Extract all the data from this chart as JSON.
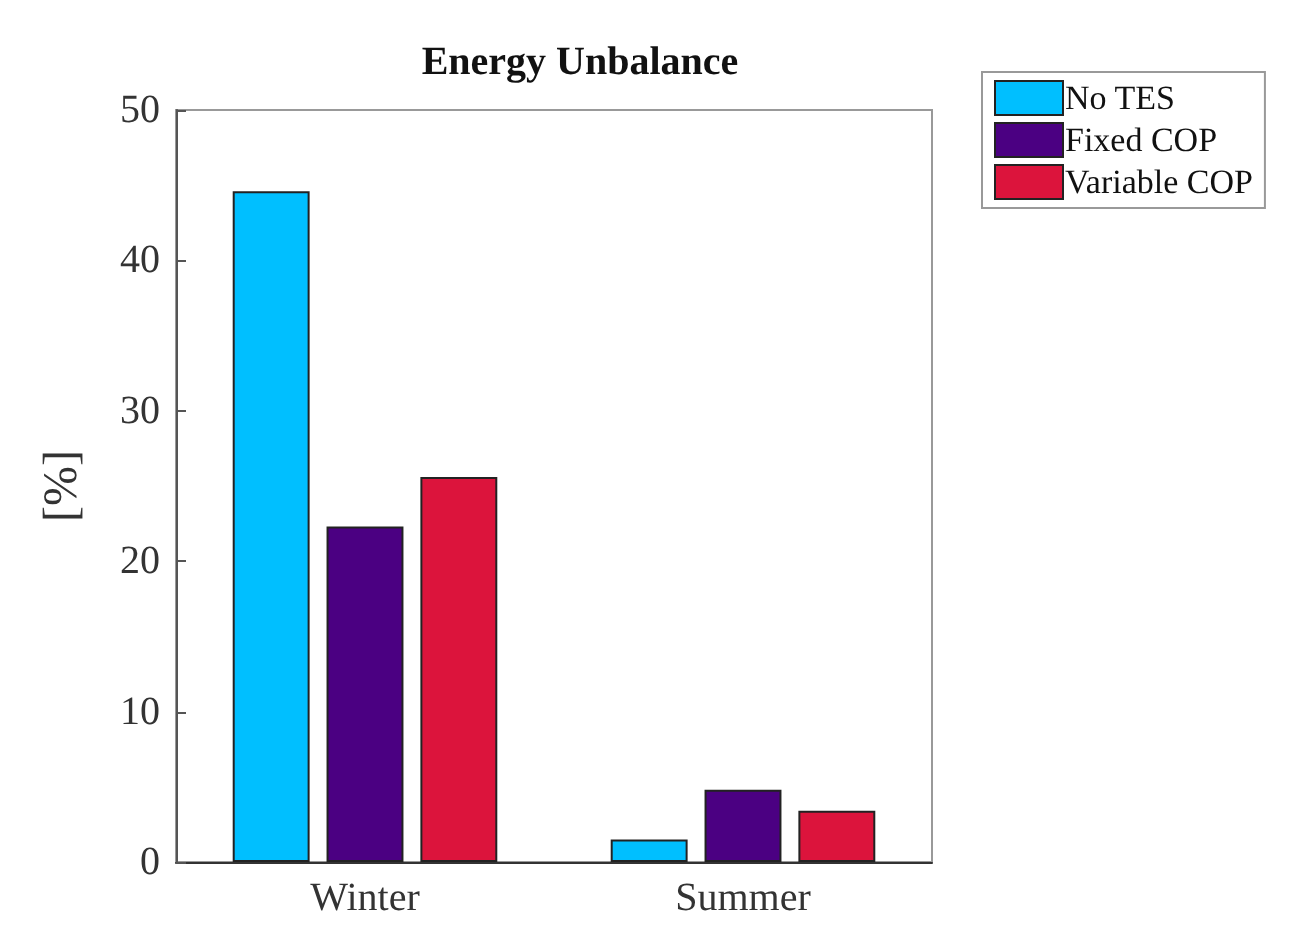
{
  "chart_data": {
    "type": "bar",
    "title": "Energy Unbalance",
    "ylabel": "[%]",
    "categories": [
      "Winter",
      "Summer"
    ],
    "series": [
      {
        "name": "No TES",
        "color": "#00bfff",
        "values": [
          44.6,
          1.5
        ]
      },
      {
        "name": "Fixed COP",
        "color": "#4b0082",
        "values": [
          22.3,
          4.8
        ]
      },
      {
        "name": "Variable COP",
        "color": "#dc143c",
        "values": [
          25.6,
          3.4
        ]
      }
    ],
    "ylim": [
      0,
      50
    ],
    "yticks": [
      0,
      10,
      20,
      30,
      40,
      50
    ],
    "grid": false,
    "legend": "top right"
  }
}
